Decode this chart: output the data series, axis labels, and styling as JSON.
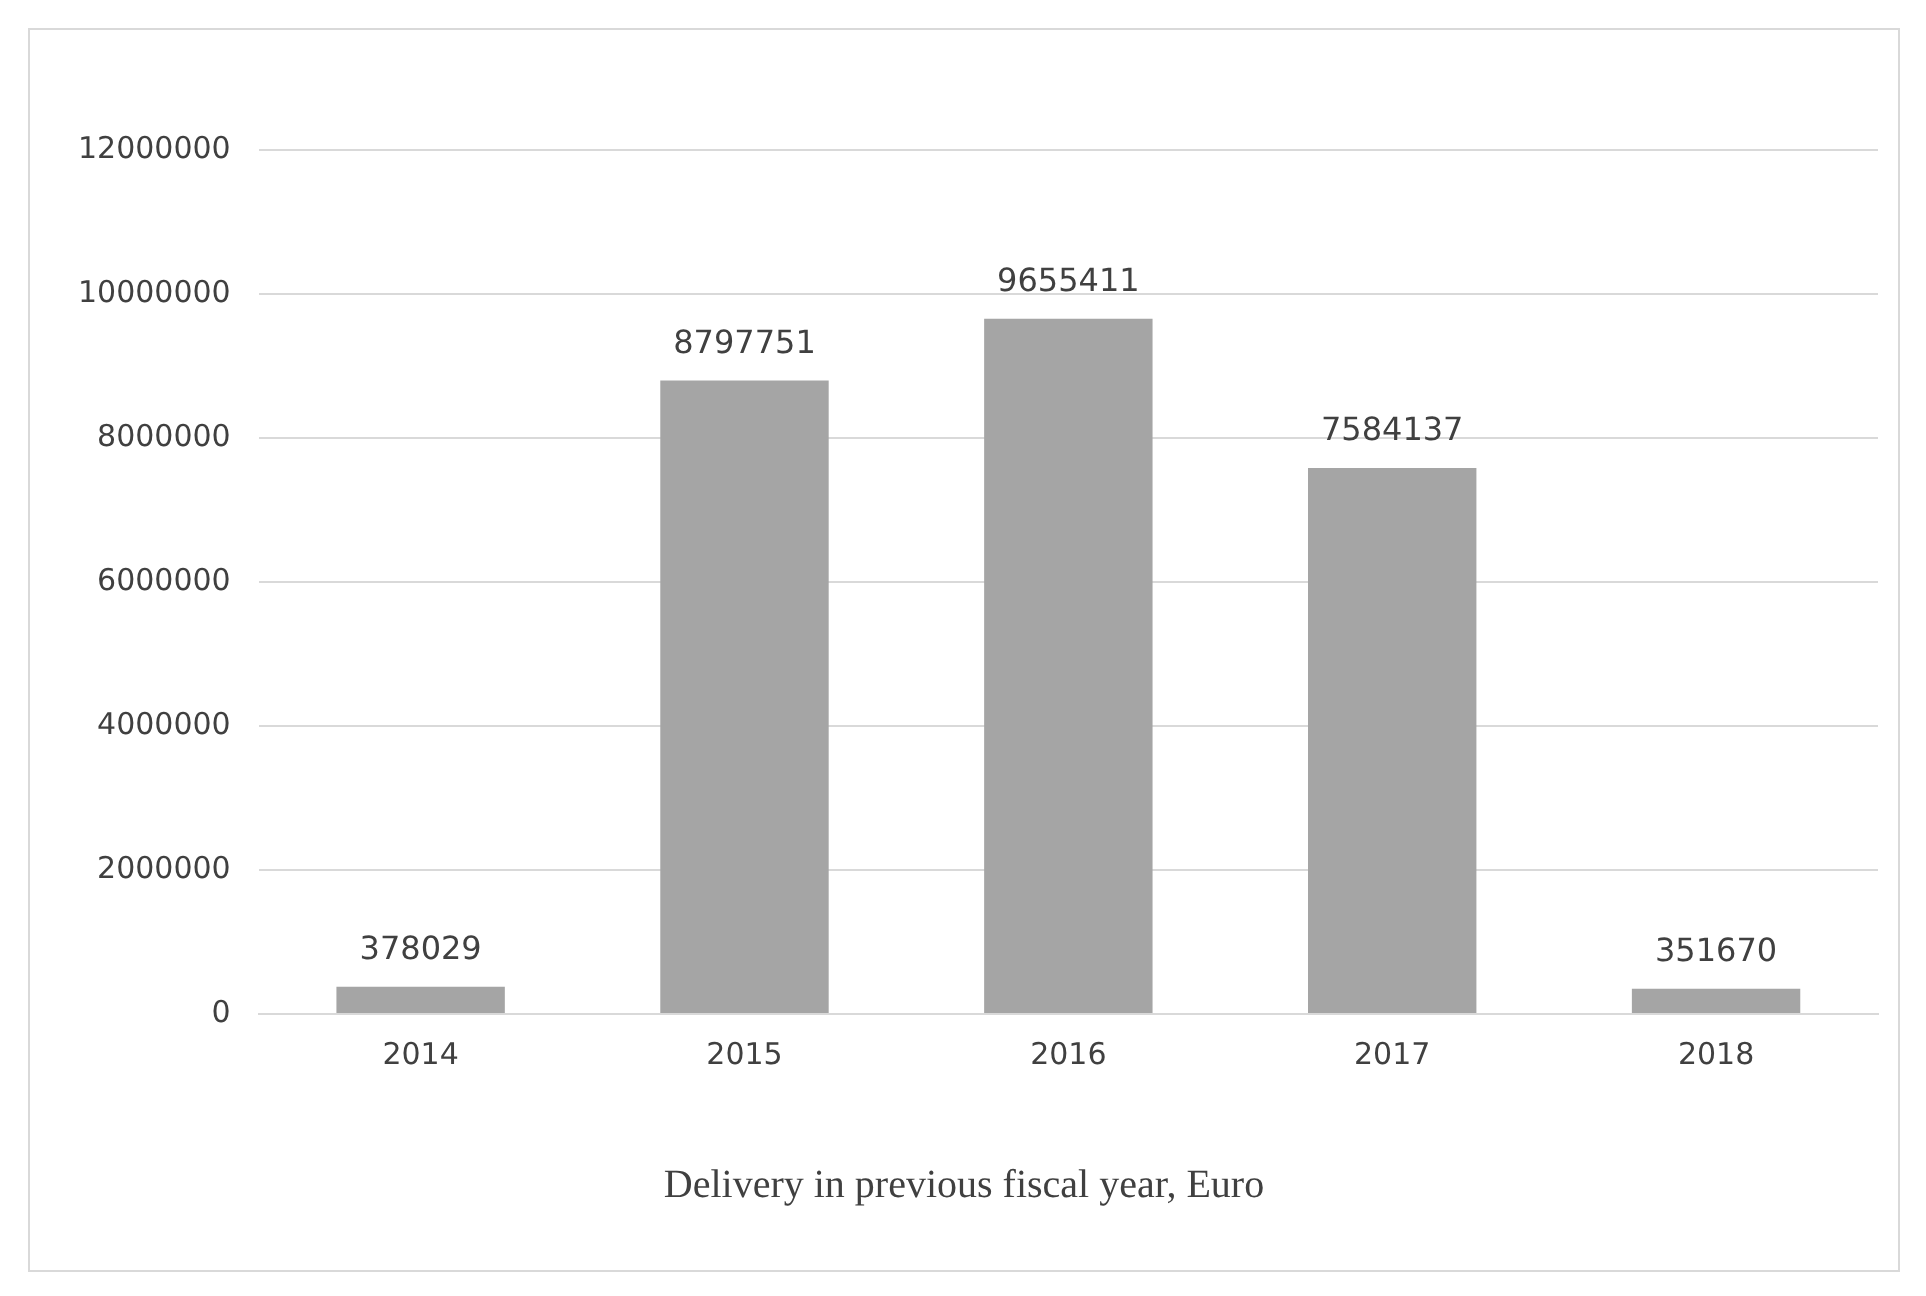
{
  "chart_data": {
    "type": "bar",
    "title": "Delivery in previous fiscal year, Euro",
    "categories": [
      "2014",
      "2015",
      "2016",
      "2017",
      "2018"
    ],
    "values": [
      378029,
      8797751,
      9655411,
      7584137,
      351670
    ],
    "color": "#a5a5a5",
    "ylim": [
      0,
      12000000
    ],
    "yticks": [
      0,
      2000000,
      4000000,
      6000000,
      8000000,
      10000000,
      12000000
    ],
    "grid": "y",
    "data_labels": true,
    "legend": false
  }
}
